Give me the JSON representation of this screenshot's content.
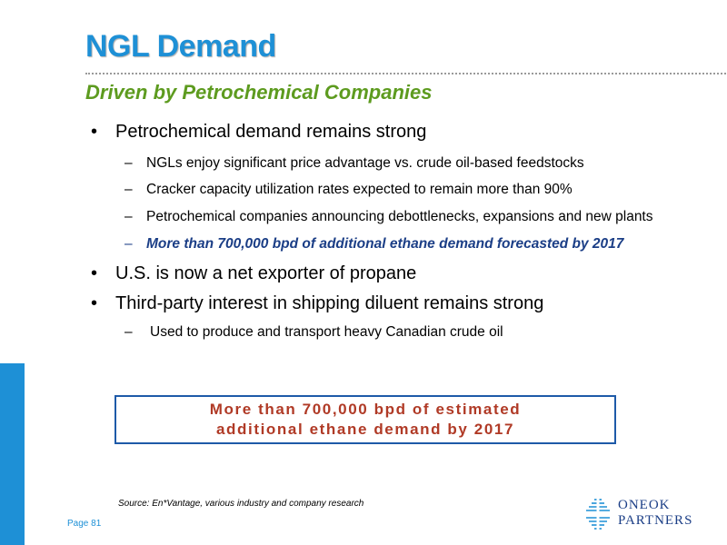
{
  "slide": {
    "title": "NGL Demand",
    "subtitle": "Driven by Petrochemical Companies",
    "bullet_symbol": "•",
    "dash_symbol": "–",
    "bullets": [
      {
        "text": "Petrochemical demand remains strong",
        "subs": [
          "NGLs enjoy significant price advantage vs. crude oil-based feedstocks",
          "Cracker capacity utilization rates expected to remain more than 90%",
          "Petrochemical companies announcing debottlenecks, expansions and new plants",
          "More than 700,000 bpd of additional ethane demand forecasted by 2017"
        ]
      },
      {
        "text": "U.S. is now a net exporter of propane"
      },
      {
        "text": "Third-party interest in shipping diluent remains strong",
        "subs": [
          "Used to produce and transport heavy Canadian crude oil"
        ]
      }
    ],
    "callout": {
      "line1": "More than 700,000 bpd of estimated",
      "line2": "additional ethane demand by 2017"
    },
    "source": "Source: En*Vantage, various industry and company research",
    "page_label": "Page 81",
    "logo": {
      "line1": "ONEOK",
      "line2": "PARTNERS",
      "icon": "oneok-diamond-logo-icon"
    }
  },
  "colors": {
    "title": "#1e90d6",
    "subtitle": "#5d9b1f",
    "highlight": "#1b3e86",
    "callout_text": "#b03a26",
    "callout_border": "#1e5aa8",
    "side_bar": "#1e90d6"
  }
}
